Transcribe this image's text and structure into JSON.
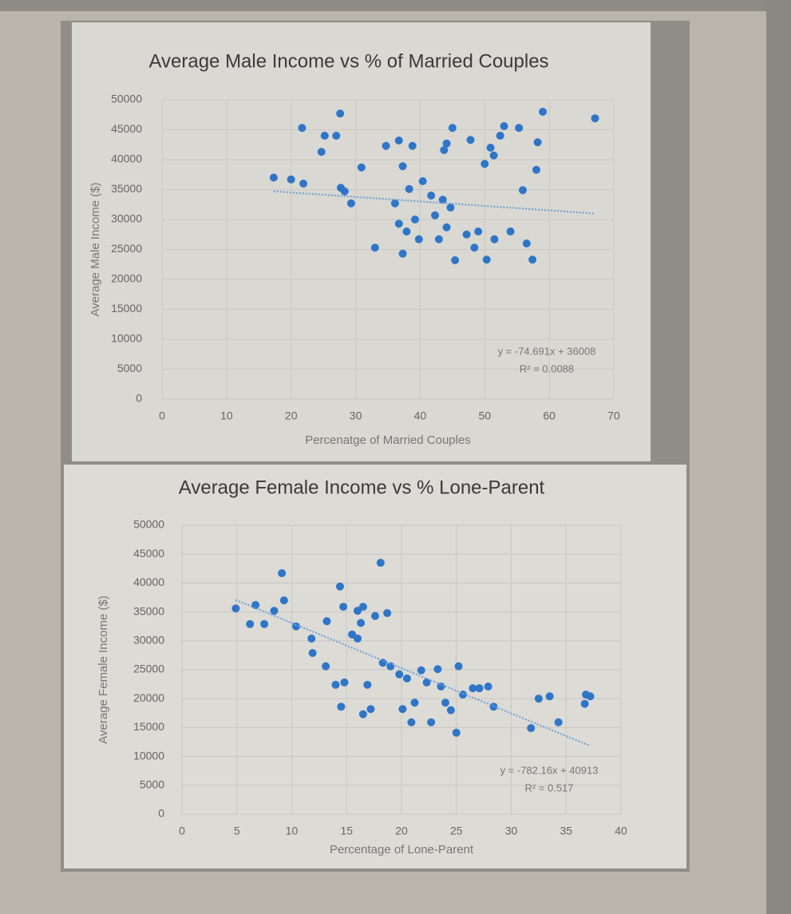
{
  "chart_data": [
    {
      "type": "scatter",
      "title": "Average Male Income vs % of Married Couples",
      "x_label": "Percenatge of Married Couples",
      "y_label": "Average Male Income ($)",
      "xlim": [
        0,
        70
      ],
      "ylim": [
        0,
        50000
      ],
      "xticks": [
        0,
        10,
        20,
        30,
        40,
        50,
        60,
        70
      ],
      "yticks": [
        0,
        5000,
        10000,
        15000,
        20000,
        25000,
        30000,
        35000,
        40000,
        45000,
        50000
      ],
      "grid": true,
      "color": "#2f76c8",
      "x": [
        17.3,
        20,
        21.9,
        21.7,
        25.2,
        27,
        24.7,
        27.6,
        27.7,
        28.3,
        29.3,
        30.9,
        33,
        34.7,
        36.7,
        38.8,
        37.3,
        38.3,
        40.4,
        36.1,
        36.7,
        37.9,
        39.2,
        37.3,
        39.8,
        41.7,
        42.3,
        42.9,
        43.5,
        44.1,
        44.7,
        45,
        43.7,
        45.4,
        47.2,
        47.8,
        48.4,
        49,
        50,
        50.3,
        50.9,
        51.5,
        52.4,
        53,
        54,
        55.3,
        55.9,
        56.5,
        57.4,
        58,
        58.2,
        59,
        67.1,
        44.1,
        51.4
      ],
      "values": [
        37000,
        36700,
        36000,
        45300,
        44000,
        44000,
        41300,
        47700,
        35300,
        34700,
        32700,
        38700,
        25300,
        42300,
        43200,
        42300,
        38900,
        35100,
        36400,
        32700,
        29300,
        28000,
        30000,
        24300,
        26700,
        34000,
        30700,
        26700,
        33300,
        28700,
        32000,
        45300,
        41600,
        23200,
        27500,
        43300,
        25300,
        28000,
        39300,
        23300,
        42000,
        26700,
        44000,
        45600,
        28000,
        45300,
        34900,
        26000,
        23300,
        38300,
        42900,
        48000,
        46900,
        42700,
        40700
      ],
      "trendline": {
        "label": "y = -74.691x + 36008",
        "r2_label": "R² = 0.0088",
        "slope": -74.691,
        "intercept": 36008,
        "color": "#6a9fd8"
      }
    },
    {
      "type": "scatter",
      "title": "Average Female Income vs % Lone-Parent",
      "x_label": "Percentage of Lone-Parent",
      "y_label": "Average Female Income ($)",
      "xlim": [
        0,
        40
      ],
      "ylim": [
        0,
        50000
      ],
      "xticks": [
        0,
        5,
        10,
        15,
        20,
        25,
        30,
        35,
        40
      ],
      "yticks": [
        0,
        5000,
        10000,
        15000,
        20000,
        25000,
        30000,
        35000,
        40000,
        45000,
        50000
      ],
      "grid": true,
      "color": "#2f76c8",
      "x": [
        4.9,
        6.2,
        6.7,
        7.5,
        8.4,
        9.1,
        9.3,
        10.4,
        11.8,
        11.9,
        13.2,
        14.4,
        14.7,
        15.5,
        16,
        16.5,
        18.1,
        17.6,
        14.5,
        14.8,
        13.1,
        14,
        16,
        16.3,
        16.9,
        16.5,
        17.2,
        18.7,
        18.3,
        19,
        19.8,
        20.5,
        20.1,
        20.9,
        21.2,
        21.8,
        22.3,
        22.7,
        23.3,
        23.6,
        24,
        24.5,
        25.2,
        25,
        25.6,
        26.5,
        27.1,
        27.9,
        28.4,
        31.8,
        32.5,
        33.5,
        34.3,
        36.7,
        37.2,
        36.8
      ],
      "values": [
        35600,
        32900,
        36200,
        32900,
        35200,
        41700,
        37000,
        32500,
        30400,
        27900,
        33400,
        39400,
        35900,
        31100,
        35200,
        35900,
        43500,
        34300,
        18600,
        22800,
        25600,
        22400,
        30400,
        33100,
        22400,
        17300,
        18200,
        34800,
        26200,
        25600,
        24200,
        23500,
        18200,
        15900,
        19300,
        24900,
        22800,
        15900,
        25100,
        22100,
        19300,
        18000,
        25600,
        14100,
        20700,
        21800,
        21800,
        22100,
        18600,
        14900,
        20000,
        20400,
        15900,
        19100,
        20400,
        20700
      ],
      "trendline": {
        "label": "y = -782.16x + 40913",
        "r2_label": "R² = 0.517",
        "slope": -782.16,
        "intercept": 40913,
        "color": "#6a9fd8"
      }
    }
  ]
}
